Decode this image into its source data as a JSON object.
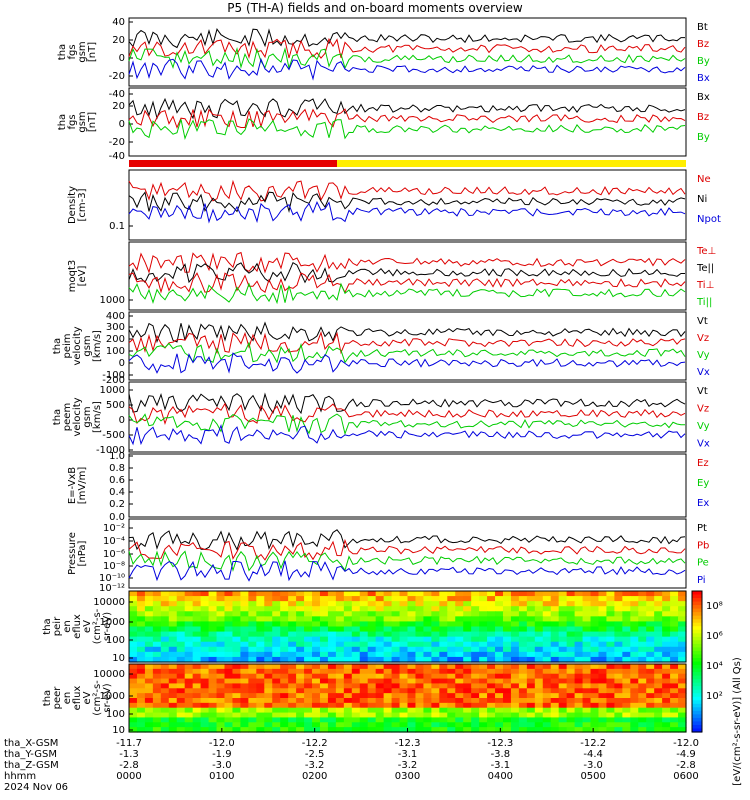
{
  "title": "P5 (TH-A) fields and on-board moments overview",
  "chart_data": {
    "type": "line",
    "time_ticks": [
      {
        "hhmm": "0000",
        "x": "-11.7",
        "y": "-1.3",
        "z": "-2.8"
      },
      {
        "hhmm": "0100",
        "x": "-12.0",
        "y": "-1.9",
        "z": "-3.0"
      },
      {
        "hhmm": "0200",
        "x": "-12.2",
        "y": "-2.5",
        "z": "-3.2"
      },
      {
        "hhmm": "0300",
        "x": "-12.3",
        "y": "-3.1",
        "z": "-3.2"
      },
      {
        "hhmm": "0400",
        "x": "-12.3",
        "y": "-3.8",
        "z": "-3.1"
      },
      {
        "hhmm": "0500",
        "x": "-12.2",
        "y": "-4.4",
        "z": "-3.0"
      },
      {
        "hhmm": "0600",
        "x": "-12.0",
        "y": "-4.9",
        "z": "-2.8"
      }
    ],
    "footer_labels": [
      "tha_X-GSM",
      "tha_Y-GSM",
      "tha_Z-GSM",
      "hhmm",
      "2024 Nov 06"
    ],
    "panels": [
      {
        "id": "fgs-gsm",
        "ylabel": [
          "tha",
          "fgs",
          "gsm",
          "[nT]"
        ],
        "yticks": [
          "40",
          "20",
          "0",
          "-20",
          "-40"
        ],
        "legend": [
          {
            "name": "Bt",
            "color": "#000000"
          },
          {
            "name": "Bz",
            "color": "#dd0000"
          },
          {
            "name": "By",
            "color": "#00cc00"
          },
          {
            "name": "Bx",
            "color": "#0000dd"
          }
        ]
      },
      {
        "id": "fgs-gsm-2",
        "ylabel": [
          "tha",
          "fgs",
          "gsm",
          "[nT]"
        ],
        "yticks": [
          "20",
          "0",
          "-20",
          "-40"
        ],
        "legend": [
          {
            "name": "Bx",
            "color": "#000000"
          },
          {
            "name": "Bz",
            "color": "#dd0000"
          },
          {
            "name": "By",
            "color": "#00cc00"
          }
        ]
      },
      {
        "id": "density",
        "ylabel": [
          "Density",
          "[cm-3]"
        ],
        "yticks": [
          "0.1"
        ],
        "legend": [
          {
            "name": "Ne",
            "color": "#dd0000"
          },
          {
            "name": "Ni",
            "color": "#000000"
          },
          {
            "name": "Npot",
            "color": "#0000dd"
          }
        ]
      },
      {
        "id": "temperature",
        "ylabel": [
          "moqt3",
          "[eV]"
        ],
        "yticks": [
          "1000"
        ],
        "legend": [
          {
            "name": "Te⊥",
            "color": "#dd0000"
          },
          {
            "name": "Te||",
            "color": "#000000"
          },
          {
            "name": "Ti⊥",
            "color": "#dd0000"
          },
          {
            "name": "Ti||",
            "color": "#00cc00"
          }
        ]
      },
      {
        "id": "peim-velocity",
        "ylabel": [
          "tha",
          "peim",
          "velocity",
          "gsm",
          "[km/s]"
        ],
        "yticks": [
          "400",
          "300",
          "200",
          "100",
          "0",
          "-100",
          "-200"
        ],
        "legend": [
          {
            "name": "Vt",
            "color": "#000000"
          },
          {
            "name": "Vz",
            "color": "#dd0000"
          },
          {
            "name": "Vy",
            "color": "#00cc00"
          },
          {
            "name": "Vx",
            "color": "#0000dd"
          }
        ]
      },
      {
        "id": "peem-velocity",
        "ylabel": [
          "tha",
          "peem",
          "velocity",
          "gsm",
          "[km/s]"
        ],
        "yticks": [
          "1000",
          "500",
          "0",
          "-500",
          "-1000"
        ],
        "legend": [
          {
            "name": "Vt",
            "color": "#000000"
          },
          {
            "name": "Vz",
            "color": "#dd0000"
          },
          {
            "name": "Vy",
            "color": "#00cc00"
          },
          {
            "name": "Vx",
            "color": "#0000dd"
          }
        ]
      },
      {
        "id": "efield",
        "ylabel": [
          "E=-VxB",
          "[mV/m]"
        ],
        "yticks": [
          "1.0",
          "0.8",
          "0.6",
          "0.4",
          "0.2",
          "0.0"
        ],
        "legend": [
          {
            "name": "Ez",
            "color": "#dd0000"
          },
          {
            "name": "Ey",
            "color": "#00cc00"
          },
          {
            "name": "Ex",
            "color": "#0000dd"
          }
        ]
      },
      {
        "id": "pressure",
        "ylabel": [
          "Pressure",
          "[nPa]"
        ],
        "yticks": [
          "10⁻²",
          "10⁻⁴",
          "10⁻⁶",
          "10⁻⁸",
          "10⁻¹⁰",
          "10⁻¹²"
        ],
        "legend": [
          {
            "name": "Pt",
            "color": "#000000"
          },
          {
            "name": "Pb",
            "color": "#dd0000"
          },
          {
            "name": "Pe",
            "color": "#00cc00"
          },
          {
            "name": "Pi",
            "color": "#0000dd"
          }
        ]
      },
      {
        "id": "peir-spec",
        "ylabel": [
          "tha",
          "peir",
          "en",
          "eflux",
          "eV",
          "(cm²-s-",
          "sr-eV)"
        ],
        "yticks": [
          "10000",
          "1000",
          "100",
          "10"
        ]
      },
      {
        "id": "peer-spec",
        "ylabel": [
          "tha",
          "peer",
          "en",
          "eflux",
          "eV",
          "(cm²-s-",
          "sr-eV)"
        ],
        "yticks": [
          "10000",
          "1000",
          "100",
          "10"
        ]
      }
    ],
    "colorbar": {
      "label": "[eV/(cm²-s-sr-eV)] (All Qs)",
      "ticks": [
        "10⁸",
        "10⁶",
        "10⁴",
        "10²"
      ]
    }
  }
}
